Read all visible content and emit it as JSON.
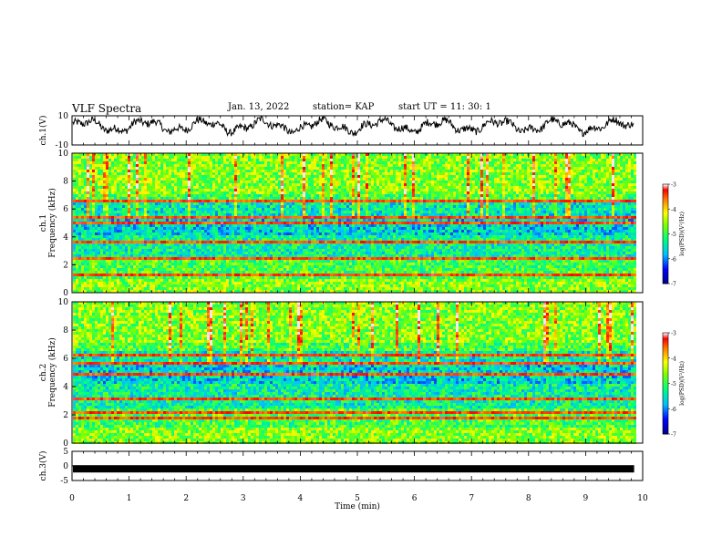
{
  "header": {
    "title": "VLF Spectra",
    "date": "Jan. 13, 2022",
    "station": "station= KAP",
    "start": "start UT =  11: 30: 1"
  },
  "colors": {
    "trace": "#000000",
    "spectrogram_scale": [
      "#00007f",
      "#0000ff",
      "#00bfff",
      "#00ff7f",
      "#7fff00",
      "#ffff00",
      "#ff7f00",
      "#ff0000",
      "#ffffff"
    ]
  },
  "chart_data": [
    {
      "id": "ch1-waveform",
      "type": "line",
      "ylabel": "ch.1(V)",
      "ylim": [
        -10,
        10
      ],
      "yticks": [
        "10",
        "-10"
      ],
      "xlim": [
        0,
        10
      ],
      "baseline": 3
    },
    {
      "id": "ch1-spectrogram",
      "type": "heatmap",
      "ylabel": "ch.1\nFrequency (kHz)",
      "ylabel_lines": [
        "ch.1",
        "Frequency (kHz)"
      ],
      "ylim": [
        0,
        10
      ],
      "yticks": [
        "0",
        "2",
        "4",
        "6",
        "8",
        "10"
      ],
      "xlim": [
        0,
        10
      ],
      "data_end_min": 9.85,
      "colorbar": {
        "label": "log(PSD)(V²/Hz)",
        "range": [
          -7,
          -3
        ],
        "ticks": [
          "-3",
          "-4",
          "-5",
          "-6",
          "-7"
        ]
      },
      "bands": [
        [
          0.3,
          0.45
        ],
        [
          1.2,
          1.3
        ],
        [
          1.6,
          1.65
        ],
        [
          2.4,
          2.5
        ],
        [
          2.95,
          3.0
        ],
        [
          3.5,
          3.65
        ],
        [
          3.95,
          4.0
        ],
        [
          4.9,
          5.1
        ],
        [
          5.35,
          5.45
        ],
        [
          6.2,
          6.3
        ],
        [
          6.5,
          6.6
        ]
      ]
    },
    {
      "id": "ch2-spectrogram",
      "type": "heatmap",
      "ylabel": "ch.2\nFrequency (kHz)",
      "ylabel_lines": [
        "ch.2",
        "Frequency (kHz)"
      ],
      "ylim": [
        0,
        10
      ],
      "yticks": [
        "0",
        "2",
        "4",
        "6",
        "8",
        "10"
      ],
      "xlim": [
        0,
        10
      ],
      "data_end_min": 9.85,
      "colorbar": {
        "label": "log(PSD)(V²/Hz)",
        "range": [
          -7,
          -3
        ],
        "ticks": [
          "-3",
          "-4",
          "-5",
          "-6",
          "-7"
        ]
      },
      "bands": [
        [
          0.3,
          0.4
        ],
        [
          1.75,
          1.85
        ],
        [
          2.1,
          2.2
        ],
        [
          3.1,
          3.2
        ],
        [
          4.5,
          4.55
        ],
        [
          4.8,
          4.9
        ],
        [
          5.6,
          5.7
        ],
        [
          6.2,
          6.35
        ]
      ]
    },
    {
      "id": "ch3-waveform",
      "type": "line",
      "ylabel": "ch.3(V)",
      "ylim": [
        -5,
        5
      ],
      "yticks": [
        "5",
        "0",
        "-5"
      ],
      "xlim": [
        0,
        10
      ],
      "level": -1
    }
  ],
  "xaxis": {
    "label": "Time (min)",
    "ticks": [
      "0",
      "1",
      "2",
      "3",
      "4",
      "5",
      "6",
      "7",
      "8",
      "9",
      "10"
    ]
  }
}
